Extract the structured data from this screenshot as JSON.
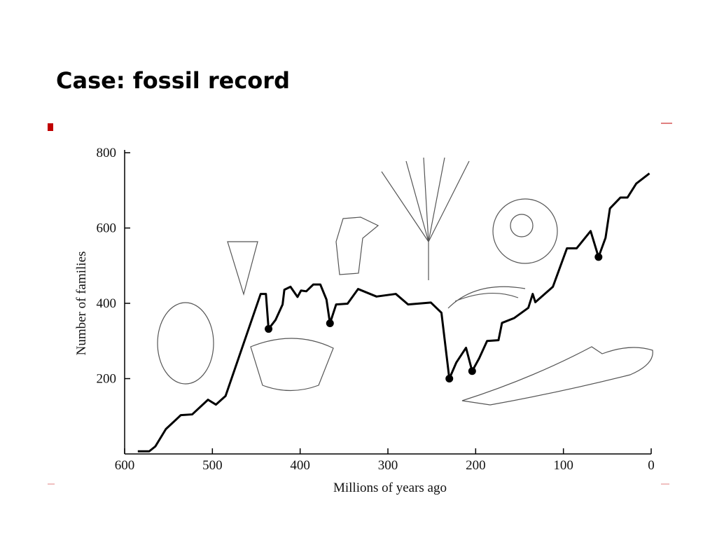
{
  "slide": {
    "title": "Case: fossil record"
  },
  "chart_data": {
    "type": "line",
    "xlabel": "Millions of years ago",
    "ylabel": "Number of families",
    "xlim": [
      600,
      0
    ],
    "xticks": [
      600,
      500,
      400,
      300,
      200,
      100,
      0
    ],
    "ylim": [
      0,
      800
    ],
    "yticks": [
      200,
      400,
      600,
      800
    ],
    "color": "#000000",
    "x": [
      585,
      572,
      565,
      553,
      536,
      523,
      505,
      496,
      485,
      445,
      439,
      436,
      428,
      420,
      418,
      411,
      403,
      399,
      393,
      385,
      377,
      370,
      366,
      359,
      346,
      334,
      313,
      291,
      277,
      251,
      239,
      230,
      222,
      211,
      204,
      196,
      187,
      174,
      170,
      156,
      140,
      135,
      132,
      112,
      96,
      85,
      69,
      60,
      52,
      47,
      35,
      27,
      17,
      2
    ],
    "values": [
      7,
      7,
      20,
      66,
      103,
      105,
      144,
      131,
      154,
      425,
      425,
      332,
      356,
      397,
      436,
      444,
      417,
      434,
      432,
      450,
      450,
      410,
      347,
      397,
      399,
      438,
      418,
      425,
      397,
      402,
      375,
      200,
      243,
      282,
      220,
      254,
      300,
      302,
      348,
      361,
      388,
      425,
      403,
      444,
      546,
      546,
      592,
      523,
      574,
      652,
      681,
      681,
      718,
      745
    ],
    "markers": {
      "x": [
        436,
        366,
        230,
        204,
        60
      ],
      "values": [
        332,
        347,
        200,
        220,
        523
      ]
    }
  }
}
